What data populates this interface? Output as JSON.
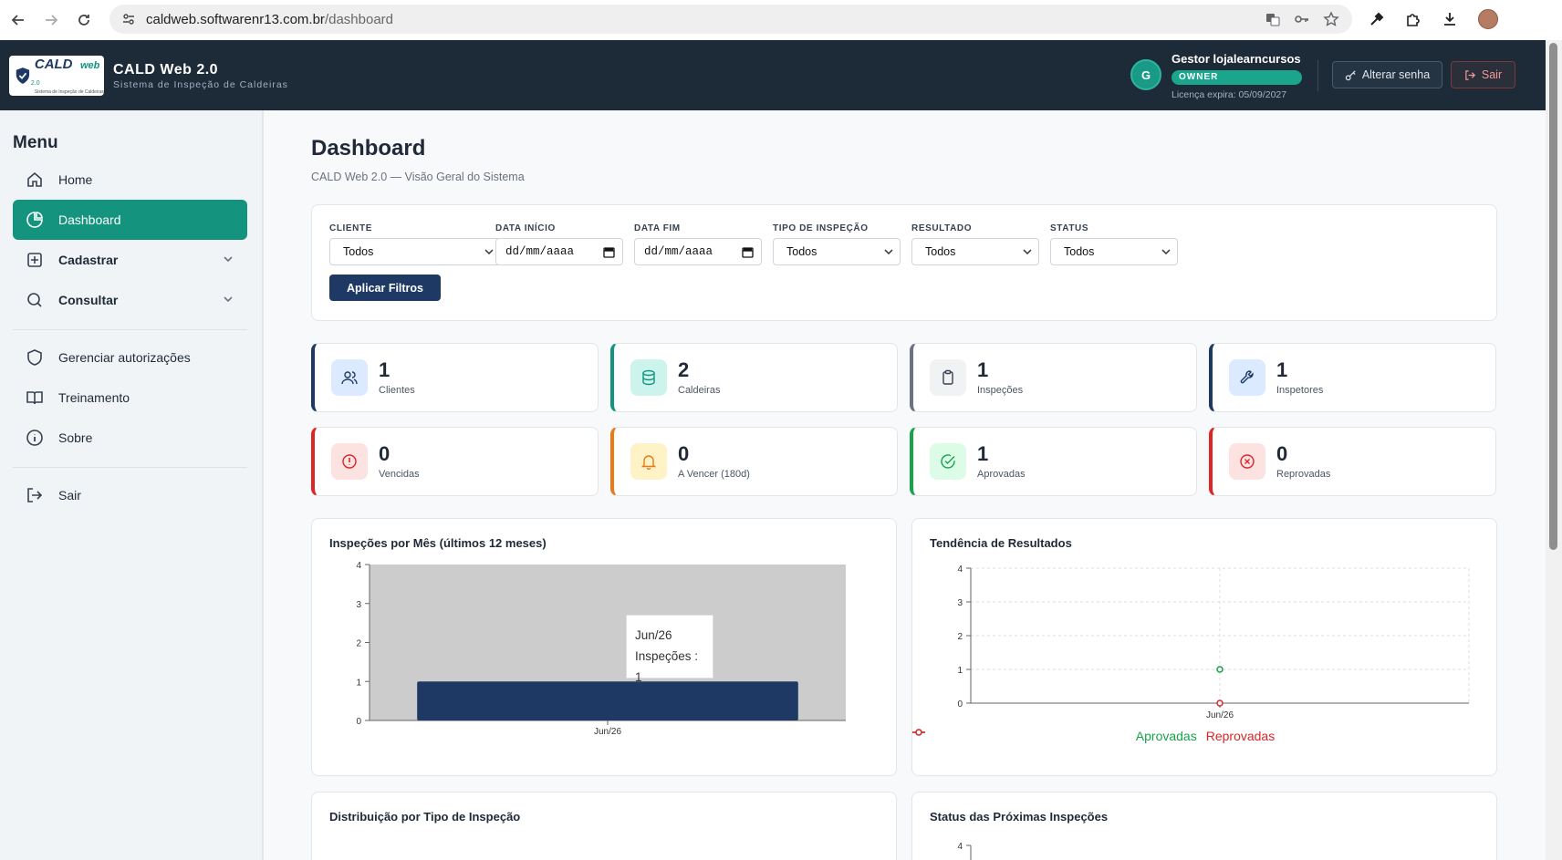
{
  "browser": {
    "url_domain": "caldweb.softwarenr13.com.br",
    "url_path": "/dashboard"
  },
  "header": {
    "logo_text": "CALD",
    "logo_suffix": "web",
    "logo_version": "2.0",
    "logo_sub": "Sistema de Inspeção de Caldeiras",
    "title": "CALD Web 2.0",
    "subtitle": "Sistema de Inspeção de Caldeiras",
    "user_initial": "G",
    "user_name": "Gestor lojalearncursos",
    "user_role": "OWNER",
    "license": "Licença expira: 05/09/2027",
    "change_password": "Alterar senha",
    "logout": "Sair"
  },
  "sidebar": {
    "title": "Menu",
    "items": [
      {
        "label": "Home",
        "icon": "home-icon"
      },
      {
        "label": "Dashboard",
        "icon": "pie-chart-icon"
      },
      {
        "label": "Cadastrar",
        "icon": "plus-square-icon"
      },
      {
        "label": "Consultar",
        "icon": "search-icon"
      },
      {
        "label": "Gerenciar autorizações",
        "icon": "shield-icon"
      },
      {
        "label": "Treinamento",
        "icon": "book-icon"
      },
      {
        "label": "Sobre",
        "icon": "info-icon"
      },
      {
        "label": "Sair",
        "icon": "logout-icon"
      }
    ]
  },
  "page": {
    "title": "Dashboard",
    "subtitle": "CALD Web 2.0 — Visão Geral do Sistema"
  },
  "filters": {
    "cliente_label": "CLIENTE",
    "cliente_value": "Todos",
    "data_inicio_label": "DATA INÍCIO",
    "data_inicio_placeholder": "dd/mm/aaaa",
    "data_fim_label": "DATA FIM",
    "data_fim_placeholder": "dd/mm/aaaa",
    "tipo_label": "TIPO DE INSPEÇÃO",
    "tipo_value": "Todos",
    "resultado_label": "RESULTADO",
    "resultado_value": "Todos",
    "status_label": "STATUS",
    "status_value": "Todos",
    "apply_label": "Aplicar Filtros"
  },
  "stats": [
    {
      "value": "1",
      "label": "Clientes",
      "color": "#1e3a64",
      "bg": "#dbeafe",
      "icon": "users-icon"
    },
    {
      "value": "2",
      "label": "Caldeiras",
      "color": "#14937f",
      "bg": "#ccf4ec",
      "icon": "database-icon"
    },
    {
      "value": "1",
      "label": "Inspeções",
      "color": "#6b7280",
      "bg": "#f1f2f4",
      "icon": "clipboard-icon"
    },
    {
      "value": "1",
      "label": "Inspetores",
      "color": "#1e3a64",
      "bg": "#dbeafe",
      "icon": "wrench-icon"
    },
    {
      "value": "0",
      "label": "Vencidas",
      "color": "#dc2626",
      "bg": "#fde2e2",
      "icon": "alert-circle-icon"
    },
    {
      "value": "0",
      "label": "A Vencer (180d)",
      "color": "#ea7a16",
      "bg": "#fef3c7",
      "icon": "bell-icon"
    },
    {
      "value": "1",
      "label": "Aprovadas",
      "color": "#16a34a",
      "bg": "#dcfce7",
      "icon": "check-circle-icon"
    },
    {
      "value": "0",
      "label": "Reprovadas",
      "color": "#dc2626",
      "bg": "#fde2e2",
      "icon": "x-circle-icon"
    }
  ],
  "charts": {
    "monthly_title": "Inspeções por Mês (últimos 12 meses)",
    "trend_title": "Tendência de Resultados",
    "type_title": "Distribuição por Tipo de Inspeção",
    "status_title": "Status das Próximas Inspeções",
    "tooltip_month": "Jun/26",
    "tooltip_text": "Inspeções : 1",
    "legend_approved": "Aprovadas",
    "legend_rejected": "Reprovadas"
  },
  "chart_data": [
    {
      "type": "bar",
      "title": "Inspeções por Mês (últimos 12 meses)",
      "categories": [
        "Jun/26"
      ],
      "series": [
        {
          "name": "Inspeções",
          "values": [
            1
          ]
        }
      ],
      "ylim": [
        0,
        4
      ],
      "yticks": [
        0,
        1,
        2,
        3,
        4
      ],
      "color": "#1e3a64"
    },
    {
      "type": "line",
      "title": "Tendência de Resultados",
      "categories": [
        "Jun/26"
      ],
      "series": [
        {
          "name": "Aprovadas",
          "values": [
            1
          ],
          "color": "#16a34a"
        },
        {
          "name": "Reprovadas",
          "values": [
            0
          ],
          "color": "#dc2626"
        }
      ],
      "ylim": [
        0,
        4
      ],
      "yticks": [
        0,
        1,
        2,
        3,
        4
      ],
      "grid": true,
      "legend": "bottom"
    },
    {
      "type": "bar",
      "title": "Status das Próximas Inspeções",
      "yticks": [
        4
      ]
    }
  ]
}
